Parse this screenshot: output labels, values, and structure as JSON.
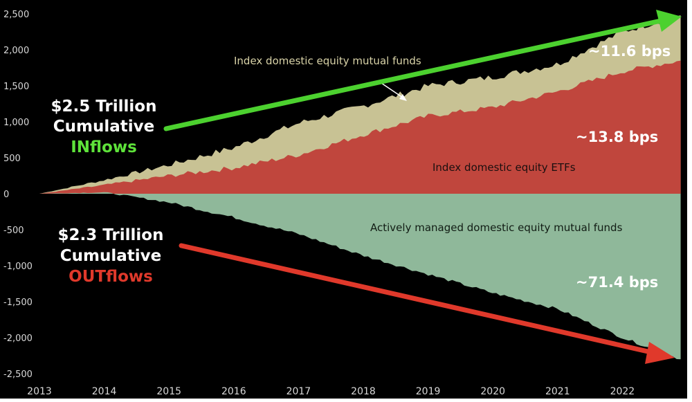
{
  "chart_data": {
    "type": "area",
    "x_ticks": [
      "2013",
      "2014",
      "2015",
      "2016",
      "2017",
      "2018",
      "2019",
      "2020",
      "2021",
      "2022"
    ],
    "y_ticks": [
      "2,500",
      "2,000",
      "1,500",
      "1,000",
      "500",
      "0",
      "-500",
      "-1,000",
      "-1,500",
      "-2,000",
      "-2,500"
    ],
    "ylim": [
      -2500,
      2500
    ],
    "xlim": [
      2013,
      2023
    ],
    "grid": false,
    "x": [
      2013,
      2014,
      2015,
      2016,
      2017,
      2018,
      2019,
      2020,
      2021,
      2022,
      2022.9
    ],
    "series": [
      {
        "name": "Index domestic equity ETFs",
        "values": [
          0,
          120,
          250,
          360,
          540,
          820,
          1080,
          1200,
          1420,
          1700,
          1850
        ]
      },
      {
        "name": "Index domestic equity mutual funds",
        "values": [
          0,
          190,
          400,
          640,
          980,
          1220,
          1500,
          1620,
          1800,
          2250,
          2480
        ]
      },
      {
        "name": "Actively managed domestic equity mutual funds",
        "values": [
          0,
          20,
          -120,
          -330,
          -560,
          -860,
          -1120,
          -1380,
          -1600,
          -2000,
          -2300
        ]
      }
    ],
    "colors": {
      "etf": "#c0463d",
      "index_mf": "#c8c294",
      "active": "#8fb89a",
      "green_arrow": "#4cd12f",
      "red_arrow": "#e0392b",
      "green_text": "#5ee23a",
      "red_text": "#e0392b"
    },
    "annotations": {
      "index_mf": "Index domestic equity mutual funds",
      "etf": "Index domestic equity ETFs",
      "active": "Actively managed domestic equity mutual funds",
      "inflow_line1": "$2.5 Trillion",
      "inflow_line2": "Cumulative",
      "inflow_line3": "INflows",
      "outflow_line1": "$2.3 Trillion",
      "outflow_line2": "Cumulative",
      "outflow_line3": "OUTflows",
      "bps_index_mf": "~11.6 bps",
      "bps_etf": "~13.8 bps",
      "bps_active": "~71.4 bps"
    }
  }
}
